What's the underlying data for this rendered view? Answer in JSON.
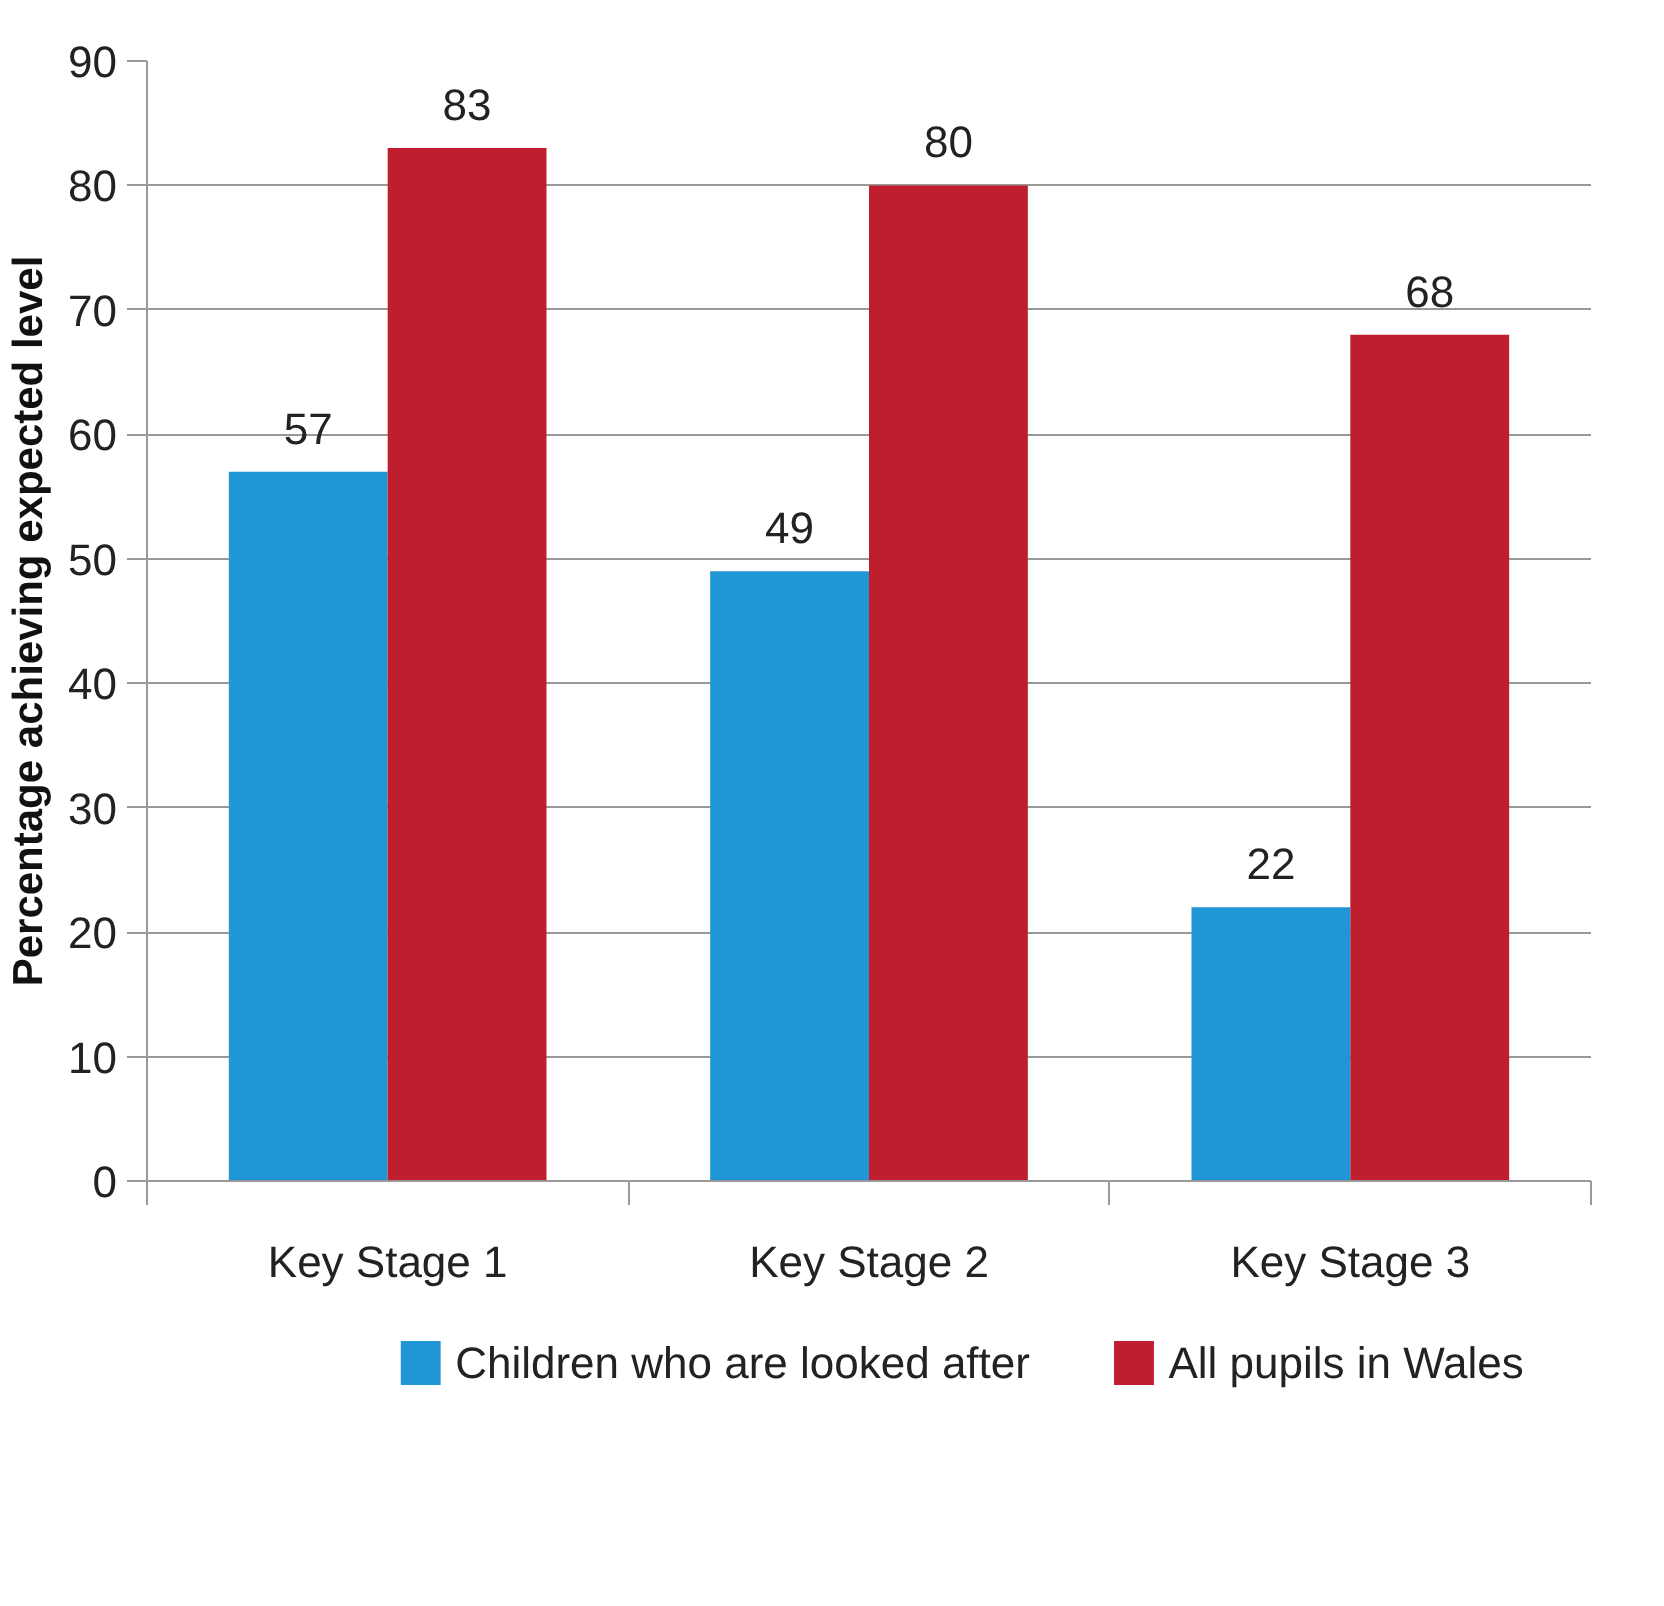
{
  "chart_data": {
    "type": "bar",
    "ylabel": "Percentage achieving expected level",
    "categories": [
      "Key Stage 1",
      "Key Stage 2",
      "Key Stage 3"
    ],
    "series": [
      {
        "name": "Children who are looked after",
        "color": "#2196d6",
        "values": [
          57,
          49,
          22
        ]
      },
      {
        "name": "All pupils in Wales",
        "color": "#be1e2d",
        "values": [
          83,
          80,
          68
        ]
      }
    ],
    "ylim": [
      0,
      90
    ],
    "yticks": [
      0,
      10,
      20,
      30,
      40,
      50,
      60,
      70,
      80,
      90
    ],
    "grid": "y",
    "legend": "bottom",
    "data_labels": true
  }
}
